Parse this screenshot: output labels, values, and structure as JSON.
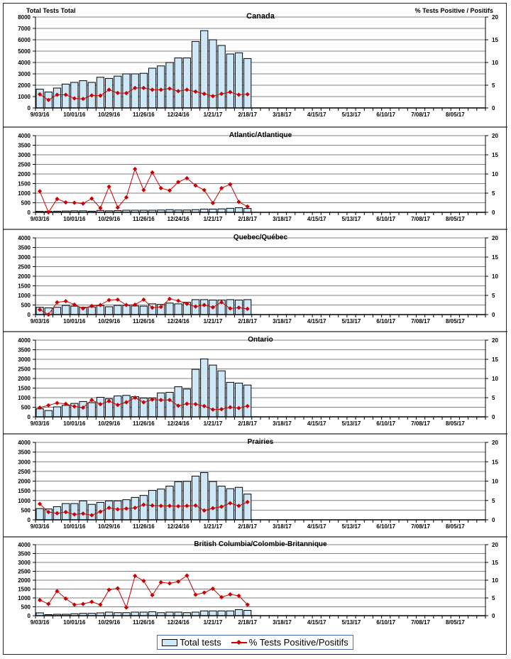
{
  "figure": {
    "left_axis_title": "Total Tests Total",
    "right_axis_title": "% Tests Positive / Positifs",
    "legend": {
      "bar_label": "Total tests",
      "line_label": "% Tests Positive/Positifs"
    },
    "colors": {
      "bar_fill": "#cfe8f8",
      "bar_stroke": "#000000",
      "line": "#cc0000",
      "grid": "#808080"
    }
  },
  "chart_data": [
    {
      "type": "bar",
      "title": "Canada",
      "ylabel": "Total Tests Total",
      "y2label": "% Tests Positive / Positifs",
      "ylim": [
        0,
        8000
      ],
      "yticks": [
        "0",
        "1000",
        "2000",
        "3000",
        "4000",
        "5000",
        "6000",
        "7000",
        "8000"
      ],
      "y2lim": [
        0,
        20
      ],
      "y2ticks": [
        "0",
        "5",
        "10",
        "15",
        "20"
      ],
      "x_tick_labels": [
        "9/03/16",
        "10/01/16",
        "10/29/16",
        "11/26/16",
        "12/24/16",
        "1/21/17",
        "2/18/17",
        "3/18/17",
        "4/15/17",
        "5/13/17",
        "6/10/17",
        "7/08/17",
        "8/05/17"
      ],
      "n_weeks": 52,
      "series": [
        {
          "name": "Total tests",
          "type": "bar",
          "axis": "left",
          "values": [
            1650,
            1400,
            1750,
            2100,
            2250,
            2400,
            2250,
            2700,
            2600,
            2800,
            3000,
            3000,
            3050,
            3500,
            3700,
            4000,
            4400,
            4400,
            5850,
            6800,
            6000,
            5500,
            4750,
            4850,
            4350
          ]
        },
        {
          "name": "% Tests Positive/Positifs",
          "type": "line",
          "axis": "right",
          "values": [
            3.0,
            1.75,
            2.9,
            2.9,
            2.1,
            2.0,
            2.75,
            2.7,
            4.0,
            3.3,
            3.25,
            4.4,
            4.4,
            4.0,
            4.0,
            4.25,
            3.7,
            4.0,
            3.6,
            3.1,
            2.6,
            3.1,
            3.5,
            2.9,
            3.0
          ]
        }
      ]
    },
    {
      "type": "bar",
      "title": "Atlantic/Atlantique",
      "ylim": [
        0,
        4000
      ],
      "yticks": [
        "0",
        "500",
        "1000",
        "1500",
        "2000",
        "2500",
        "3000",
        "3500",
        "4000"
      ],
      "y2lim": [
        0,
        20
      ],
      "y2ticks": [
        "0",
        "5",
        "10",
        "15",
        "20"
      ],
      "x_tick_labels": [
        "9/03/16",
        "10/01/16",
        "10/29/16",
        "11/26/16",
        "12/24/16",
        "1/21/17",
        "2/18/17",
        "3/18/17",
        "4/15/17",
        "5/13/17",
        "6/10/17",
        "7/08/17",
        "8/05/17"
      ],
      "n_weeks": 52,
      "series": [
        {
          "name": "Total tests",
          "type": "bar",
          "axis": "left",
          "values": [
            50,
            50,
            60,
            70,
            80,
            80,
            60,
            100,
            80,
            90,
            110,
            110,
            110,
            110,
            120,
            140,
            120,
            120,
            140,
            170,
            170,
            180,
            210,
            240,
            200
          ]
        },
        {
          "name": "% Tests Positive/Positifs",
          "type": "line",
          "axis": "right",
          "values": [
            5.5,
            0,
            3.5,
            2.6,
            2.5,
            2.3,
            3.6,
            1.1,
            6.7,
            1.25,
            3.9,
            11.3,
            5.8,
            10.4,
            6.3,
            5.7,
            7.9,
            8.9,
            7.0,
            5.8,
            2.4,
            6.3,
            7.3,
            2.7,
            1.5
          ]
        }
      ]
    },
    {
      "type": "bar",
      "title": "Quebec/Québec",
      "ylim": [
        0,
        4000
      ],
      "yticks": [
        "0",
        "500",
        "1000",
        "1500",
        "2000",
        "2500",
        "3000",
        "3500",
        "4000"
      ],
      "y2lim": [
        0,
        20
      ],
      "y2ticks": [
        "0",
        "5",
        "10",
        "15",
        "20"
      ],
      "x_tick_labels": [
        "9/03/16",
        "10/01/16",
        "10/29/16",
        "11/26/16",
        "12/24/16",
        "1/21/17",
        "2/18/17",
        "3/18/17",
        "4/15/17",
        "5/13/17",
        "6/10/17",
        "7/08/17",
        "8/05/17"
      ],
      "n_weeks": 52,
      "series": [
        {
          "name": "Total tests",
          "type": "bar",
          "axis": "left",
          "values": [
            380,
            350,
            380,
            480,
            440,
            380,
            400,
            470,
            410,
            480,
            480,
            450,
            440,
            560,
            530,
            600,
            560,
            640,
            780,
            780,
            760,
            760,
            780,
            760,
            780
          ]
        },
        {
          "name": "% Tests Positive/Positifs",
          "type": "line",
          "axis": "right",
          "values": [
            1.3,
            0,
            3.2,
            3.5,
            2.6,
            1.6,
            2.25,
            2.5,
            3.8,
            3.9,
            2.5,
            2.6,
            3.9,
            1.8,
            2.0,
            4.1,
            3.6,
            2.8,
            2.1,
            2.5,
            1.9,
            3.2,
            1.6,
            1.8,
            1.5
          ]
        }
      ]
    },
    {
      "type": "bar",
      "title": "Ontario",
      "ylim": [
        0,
        4000
      ],
      "yticks": [
        "0",
        "500",
        "1000",
        "1500",
        "2000",
        "2500",
        "3000",
        "3500",
        "4000"
      ],
      "y2lim": [
        0,
        20
      ],
      "y2ticks": [
        "0",
        "5",
        "10",
        "15",
        "20"
      ],
      "x_tick_labels": [
        "9/03/16",
        "10/01/16",
        "10/29/16",
        "11/26/16",
        "12/24/16",
        "1/21/17",
        "2/18/17",
        "3/18/17",
        "4/15/17",
        "5/13/17",
        "6/10/17",
        "7/08/17",
        "8/05/17"
      ],
      "n_weeks": 52,
      "series": [
        {
          "name": "Total tests",
          "type": "bar",
          "axis": "left",
          "values": [
            420,
            330,
            520,
            600,
            700,
            800,
            740,
            1020,
            940,
            1090,
            1120,
            1050,
            980,
            980,
            1250,
            1280,
            1570,
            1450,
            2480,
            3020,
            2700,
            2400,
            1800,
            1760,
            1660
          ]
        },
        {
          "name": "% Tests Positive/Positifs",
          "type": "line",
          "axis": "right",
          "values": [
            2.4,
            3.0,
            3.6,
            3.4,
            2.7,
            2.4,
            4.4,
            3.3,
            4.1,
            3.1,
            3.8,
            5.0,
            3.8,
            4.5,
            4.4,
            4.4,
            2.9,
            3.4,
            3.3,
            2.8,
            1.9,
            2.0,
            2.5,
            2.3,
            2.8
          ]
        }
      ]
    },
    {
      "type": "bar",
      "title": "Prairies",
      "ylim": [
        0,
        4000
      ],
      "yticks": [
        "0",
        "500",
        "1000",
        "1500",
        "2000",
        "2500",
        "3000",
        "3500",
        "4000"
      ],
      "y2lim": [
        0,
        20
      ],
      "y2ticks": [
        "0",
        "5",
        "10",
        "15",
        "20"
      ],
      "x_tick_labels": [
        "9/03/16",
        "10/01/16",
        "10/29/16",
        "11/26/16",
        "12/24/16",
        "1/21/17",
        "2/18/17",
        "3/18/17",
        "4/15/17",
        "5/13/17",
        "6/10/17",
        "7/08/17",
        "8/05/17"
      ],
      "n_weeks": 52,
      "series": [
        {
          "name": "Total tests",
          "type": "bar",
          "axis": "left",
          "values": [
            580,
            560,
            680,
            840,
            840,
            980,
            800,
            900,
            980,
            980,
            1040,
            1160,
            1260,
            1520,
            1590,
            1740,
            1970,
            1990,
            2260,
            2440,
            1980,
            1740,
            1610,
            1680,
            1330
          ]
        },
        {
          "name": "% Tests Positive/Positifs",
          "type": "line",
          "axis": "right",
          "values": [
            4.1,
            2.0,
            1.7,
            2.0,
            1.4,
            1.6,
            1.2,
            2.1,
            3.1,
            2.7,
            2.9,
            3.1,
            3.9,
            3.7,
            3.6,
            3.6,
            3.5,
            3.6,
            3.7,
            2.4,
            3.0,
            3.4,
            4.3,
            3.6,
            4.6
          ]
        }
      ]
    },
    {
      "type": "bar",
      "title": "British Columbia/Colombie-Britannique",
      "ylim": [
        0,
        4000
      ],
      "yticks": [
        "0",
        "500",
        "1000",
        "1500",
        "2000",
        "2500",
        "3000",
        "3500",
        "4000"
      ],
      "y2lim": [
        0,
        20
      ],
      "y2ticks": [
        "0",
        "5",
        "10",
        "15",
        "20"
      ],
      "x_tick_labels": [
        "9/03/16",
        "10/01/16",
        "10/29/16",
        "11/26/16",
        "12/24/16",
        "1/21/17",
        "2/18/17",
        "3/18/17",
        "4/15/17",
        "5/13/17",
        "6/10/17",
        "7/08/17",
        "8/05/17"
      ],
      "n_weeks": 52,
      "series": [
        {
          "name": "Total tests",
          "type": "bar",
          "axis": "left",
          "values": [
            160,
            60,
            80,
            80,
            110,
            130,
            130,
            160,
            200,
            170,
            170,
            200,
            200,
            220,
            170,
            200,
            200,
            170,
            200,
            270,
            270,
            270,
            270,
            340,
            300
          ]
        },
        {
          "name": "% Tests Positive/Positifs",
          "type": "line",
          "axis": "right",
          "values": [
            4.4,
            3.3,
            6.9,
            4.8,
            3.1,
            3.3,
            3.9,
            3.1,
            7.3,
            7.7,
            2.3,
            11.2,
            9.8,
            5.8,
            9.4,
            9.1,
            9.6,
            11.3,
            5.9,
            6.5,
            7.6,
            5.2,
            6.0,
            5.6,
            3.1
          ]
        }
      ]
    }
  ]
}
